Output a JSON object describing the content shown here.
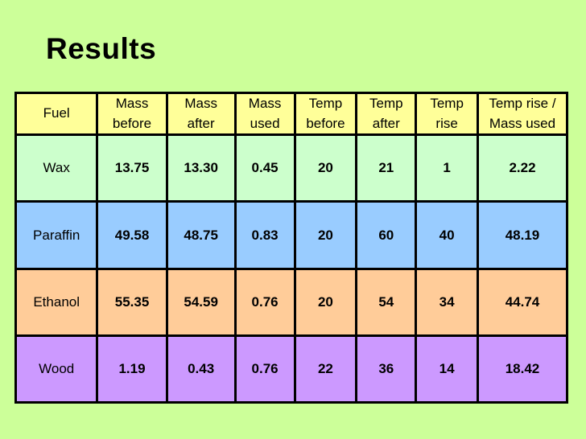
{
  "slide": {
    "background_color": "#CCFF99",
    "title": "Results"
  },
  "table": {
    "border_color": "#000000",
    "header": {
      "background_color": "#FFFF99",
      "columns": {
        "fuel": "Fuel",
        "mass_before": "Mass\nbefore",
        "mass_after": "Mass\nafter",
        "mass_used": "Mass\nused",
        "temp_before": "Temp\nbefore",
        "temp_after": "Temp\nafter",
        "temp_rise": "Temp\nrise",
        "temp_rise_per_mass_used": "Temp rise /\nMass used"
      }
    },
    "rows": [
      {
        "label": "Wax",
        "background_color": "#CCFFCC",
        "values": [
          "13.75",
          "13.30",
          "0.45",
          "20",
          "21",
          "1",
          "2.22"
        ]
      },
      {
        "label": "Paraffin",
        "background_color": "#99CCFF",
        "values": [
          "49.58",
          "48.75",
          "0.83",
          "20",
          "60",
          "40",
          "48.19"
        ]
      },
      {
        "label": "Ethanol",
        "background_color": "#FFCC99",
        "values": [
          "55.35",
          "54.59",
          "0.76",
          "20",
          "54",
          "34",
          "44.74"
        ]
      },
      {
        "label": "Wood",
        "background_color": "#CC99FF",
        "values": [
          "1.19",
          "0.43",
          "0.76",
          "22",
          "36",
          "14",
          "18.42"
        ]
      }
    ]
  },
  "chart_data": {
    "type": "table",
    "title": "Results",
    "columns": [
      "Fuel",
      "Mass before",
      "Mass after",
      "Mass used",
      "Temp before",
      "Temp after",
      "Temp rise",
      "Temp rise / Mass used"
    ],
    "rows": [
      [
        "Wax",
        13.75,
        13.3,
        0.45,
        20,
        21,
        1,
        2.22
      ],
      [
        "Paraffin",
        49.58,
        48.75,
        0.83,
        20,
        60,
        40,
        48.19
      ],
      [
        "Ethanol",
        55.35,
        54.59,
        0.76,
        20,
        54,
        34,
        44.74
      ],
      [
        "Wood",
        1.19,
        0.43,
        0.76,
        22,
        36,
        14,
        18.42
      ]
    ]
  }
}
